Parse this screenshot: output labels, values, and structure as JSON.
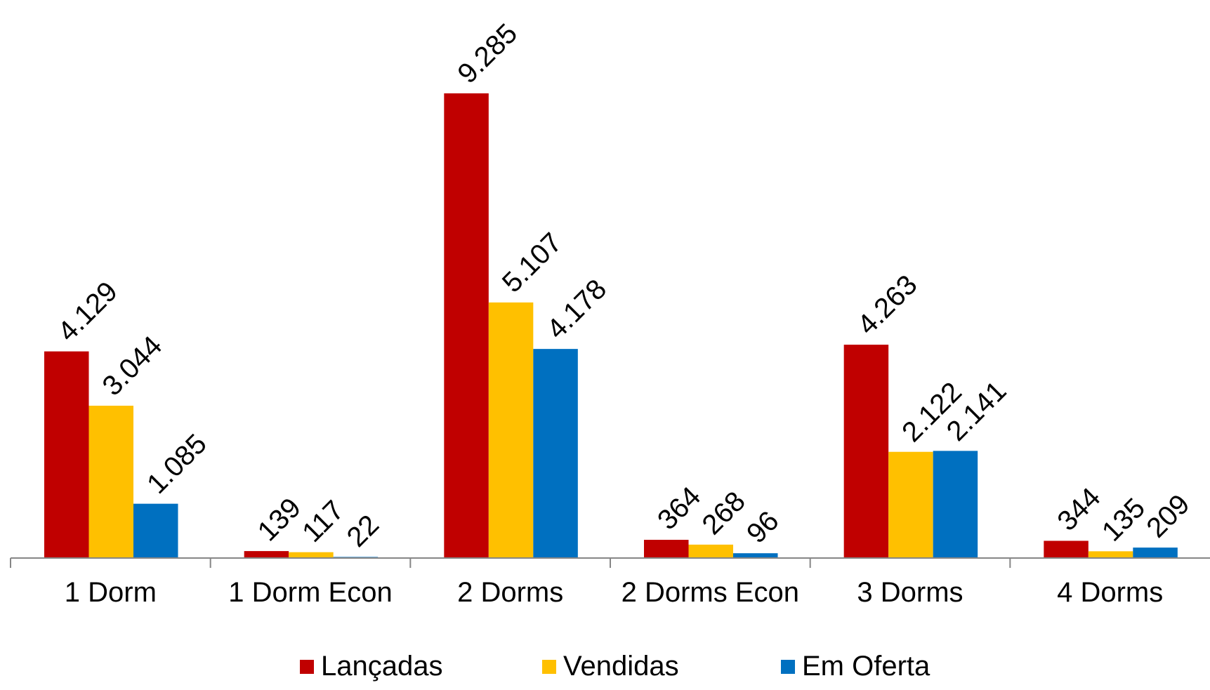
{
  "chart_data": {
    "type": "bar",
    "title": "",
    "xlabel": "",
    "ylabel": "",
    "categories": [
      "1 Dorm",
      "1 Dorm Econ",
      "2 Dorms",
      "2 Dorms Econ",
      "3 Dorms",
      "4 Dorms"
    ],
    "series": [
      {
        "name": "Lançadas",
        "color": "#C00000",
        "values": [
          4129,
          139,
          9285,
          364,
          4263,
          344
        ],
        "labels": [
          "4.129",
          "139",
          "9.285",
          "364",
          "4.263",
          "344"
        ]
      },
      {
        "name": "Vendidas",
        "color": "#FFC000",
        "values": [
          3044,
          117,
          5107,
          268,
          2122,
          135
        ],
        "labels": [
          "3.044",
          "117",
          "5.107",
          "268",
          "2.122",
          "135"
        ]
      },
      {
        "name": "Em Oferta",
        "color": "#0070C0",
        "values": [
          1085,
          22,
          4178,
          96,
          2141,
          209
        ],
        "labels": [
          "1.085",
          "22",
          "4.178",
          "96",
          "2.141",
          "209"
        ]
      }
    ],
    "ylim": [
      0,
      9285
    ],
    "grid": false,
    "legend_position": "bottom",
    "data_labels_rotated": true
  }
}
